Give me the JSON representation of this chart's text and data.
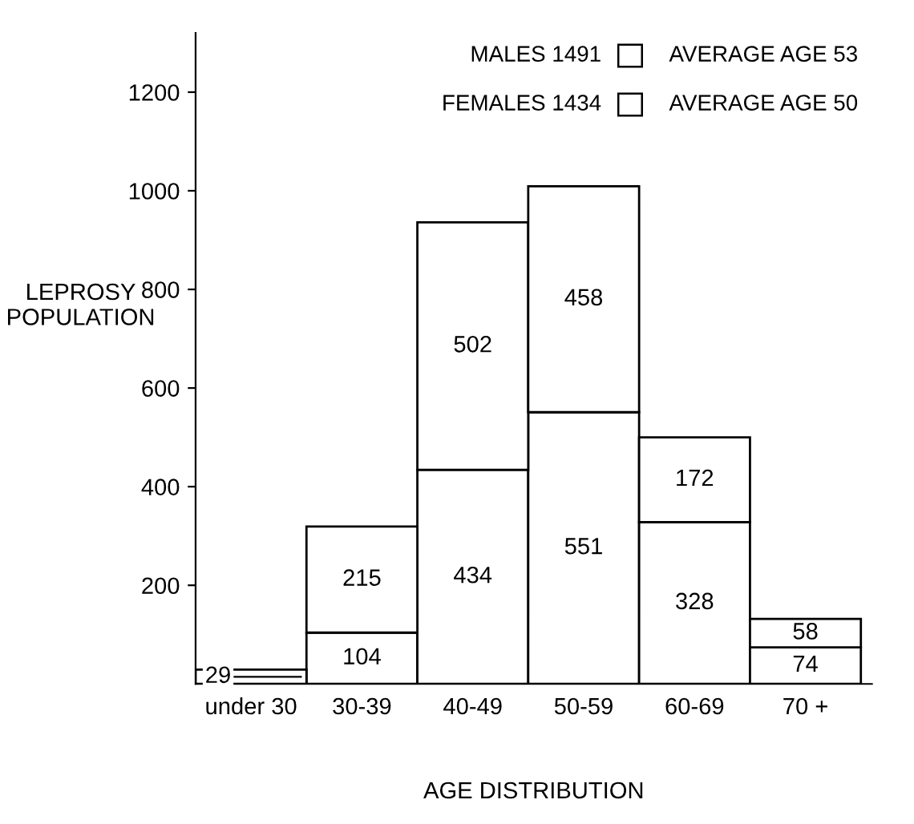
{
  "chart_data": {
    "type": "bar",
    "stacked": true,
    "xlabel": "AGE DISTRIBUTION",
    "ylabel": "LEPROSY\nPOPULATION",
    "categories": [
      "under 30",
      "30-39",
      "40-49",
      "50-59",
      "60-69",
      "70 +"
    ],
    "series": [
      {
        "name": "MALES 1491",
        "color": "#ffffff",
        "values": [
          null,
          104,
          434,
          551,
          328,
          74
        ]
      },
      {
        "name": "FEMALES 1434",
        "color": "#ffffff",
        "values": [
          29,
          215,
          502,
          458,
          172,
          58
        ]
      }
    ],
    "annotations": [
      "AVERAGE AGE 53",
      "AVERAGE AGE 50"
    ],
    "data_labels": true,
    "ylim": [
      0,
      1320
    ],
    "yticks": [
      200,
      400,
      600,
      800,
      1000,
      1200
    ],
    "grid": false,
    "legend": "top right"
  }
}
